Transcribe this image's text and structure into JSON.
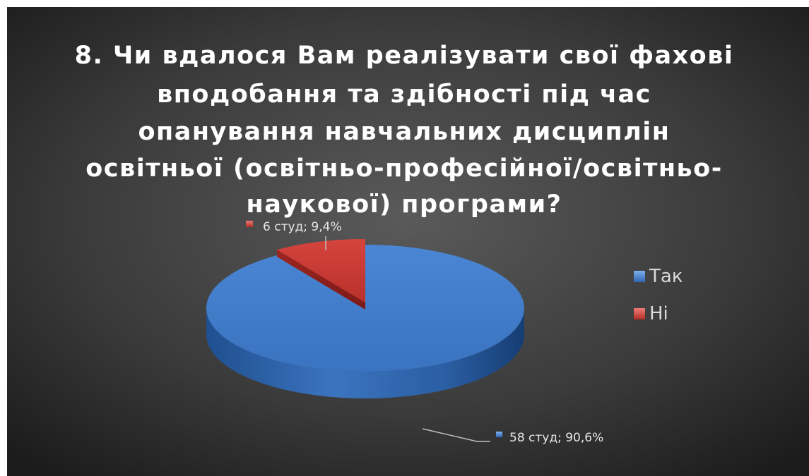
{
  "chart_data": {
    "type": "pie",
    "title": "8. Чи вдалося Вам реалізувати свої фахові вподобання та здібності під час опанування навчальних дисциплін освітньої (освітньо-професійної/освітньо-наукової) програми?",
    "title_lines": [
      "8. Чи вдалося Вам реалізувати свої фахові",
      "вподобання та здібності під час",
      "опанування навчальних дисциплін",
      "освітньої (освітньо-професійної/освітньо-",
      "наукової) програми?"
    ],
    "categories": [
      "Так",
      "Ні"
    ],
    "values": [
      58,
      6
    ],
    "percent": [
      90.6,
      9.4
    ],
    "data_labels": [
      "58 студ; 90,6%",
      "6 студ; 9,4%"
    ],
    "colors": [
      "#3d79c9",
      "#c93a35"
    ],
    "legend_position": "right",
    "style": "3d"
  }
}
